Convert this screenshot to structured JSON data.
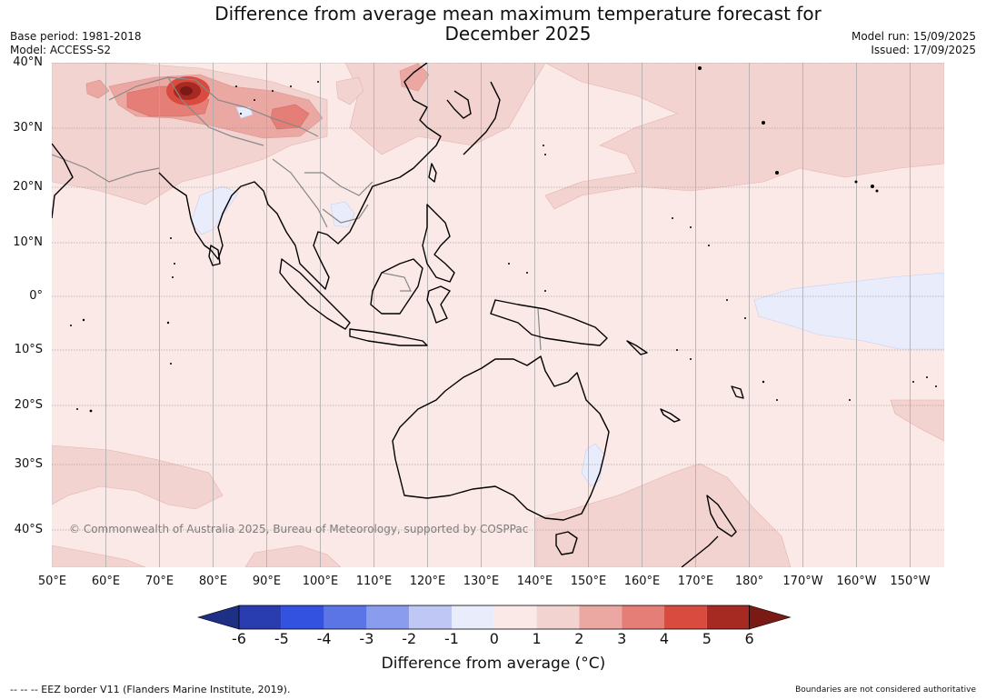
{
  "title": "Difference from average mean maximum temperature forecast for\nDecember 2025",
  "meta_left": {
    "base_period": "Base period: 1981-2018",
    "model": "Model: ACCESS-S2"
  },
  "meta_right": {
    "model_run": "Model run: 15/09/2025",
    "issued": "Issued: 17/09/2025"
  },
  "lat_labels": [
    "40°N",
    "30°N",
    "20°N",
    "10°N",
    "0°",
    "10°S",
    "20°S",
    "30°S",
    "40°S"
  ],
  "lon_labels": [
    "50°E",
    "60°E",
    "70°E",
    "80°E",
    "90°E",
    "100°E",
    "110°E",
    "120°E",
    "130°E",
    "140°E",
    "150°E",
    "160°E",
    "170°E",
    "180°",
    "170°W",
    "160°W",
    "150°W"
  ],
  "copyright": "© Commonwealth of Australia 2025, Bureau of Meteorology, supported by COSPPac",
  "colorbar": {
    "ticks": [
      "-6",
      "-5",
      "-4",
      "-3",
      "-2",
      "-1",
      "0",
      "1",
      "2",
      "3",
      "4",
      "5",
      "6"
    ],
    "colors": [
      "#1e2f86",
      "#2a3db0",
      "#3352df",
      "#5b74e6",
      "#8a9cee",
      "#bfc8f5",
      "#e8ecfb",
      "#fbe9e7",
      "#f3d3d0",
      "#eba8a3",
      "#e47e77",
      "#d94a3f",
      "#a72a22",
      "#7a1a15"
    ],
    "label": "Difference from average (°C)"
  },
  "footer_left": "--  --  -- EEZ border V11 (Flanders Marine Institute, 2019).",
  "footer_right": "Boundaries are not considered authoritative"
}
